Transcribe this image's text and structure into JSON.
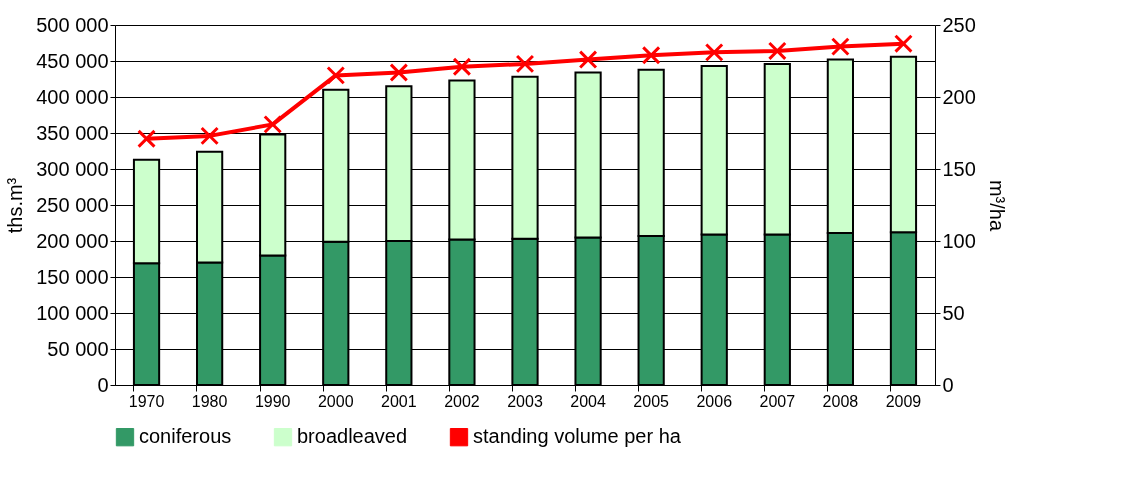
{
  "chart_data": {
    "type": "bar",
    "stacked": true,
    "categories": [
      "1970",
      "1980",
      "1990",
      "2000",
      "2001",
      "2002",
      "2003",
      "2004",
      "2005",
      "2006",
      "2007",
      "2008",
      "2009"
    ],
    "series": [
      {
        "name": "coniferous",
        "color": "#339966",
        "values": [
          169000,
          170000,
          180000,
          199000,
          200000,
          202000,
          203000,
          205000,
          207000,
          209000,
          209000,
          211000,
          212000
        ]
      },
      {
        "name": "broadleaved",
        "color": "#ccffcc",
        "values": [
          144000,
          154000,
          168000,
          211000,
          215000,
          221000,
          225000,
          229000,
          231000,
          234000,
          237000,
          241000,
          244000
        ]
      },
      {
        "name": "standing volume per ha",
        "type": "line",
        "axis": "y2",
        "color": "#ff0000",
        "marker": "cross",
        "line_style": "solid",
        "values": [
          171,
          173,
          181,
          215,
          217,
          221,
          223,
          226,
          229,
          231,
          232,
          235,
          237
        ]
      }
    ],
    "ylabel": "ths.m³",
    "y2label": "m³/ha",
    "ylim": [
      0,
      500000
    ],
    "yticks": [
      0,
      {
        "value": 50000,
        "label": "50 000"
      },
      {
        "value": 100000,
        "label": "100 000"
      },
      {
        "value": 150000,
        "label": "150 000"
      },
      {
        "value": 200000,
        "label": "200 000"
      },
      {
        "value": 250000,
        "label": "250 000"
      },
      {
        "value": 300000,
        "label": "300 000"
      },
      {
        "value": 350000,
        "label": "350 000"
      },
      {
        "value": 400000,
        "label": "400 000"
      },
      {
        "value": 450000,
        "label": "450 000"
      },
      {
        "value": 500000,
        "label": "500 000"
      }
    ],
    "y2lim": [
      0,
      250
    ],
    "y2ticks": [
      0,
      50,
      100,
      150,
      200,
      250
    ],
    "grid": "y",
    "legend": "bottom"
  }
}
